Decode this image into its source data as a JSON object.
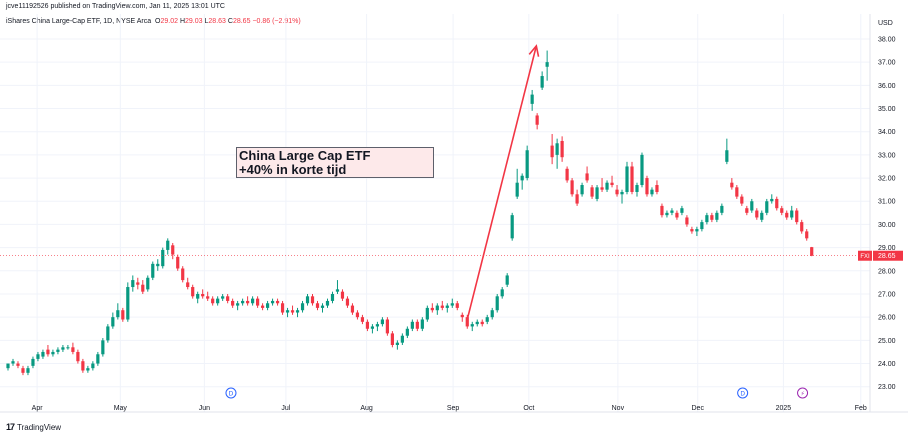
{
  "header": {
    "published": "jcve11192526 published on TradingView.com, Jan 11, 2025 13:01 UTC",
    "instrument": "iShares China Large-Cap ETF, 1D, NYSE Arca",
    "o_label": "O",
    "o_value": "29.02",
    "h_label": "H",
    "h_value": "29.03",
    "l_label": "L",
    "l_value": "28.63",
    "c_label": "C",
    "c_value": "28.65",
    "change": "−0.86 (−2.91%)"
  },
  "annotation": {
    "line1": "China Large Cap ETF",
    "line2": "+40% in korte tijd"
  },
  "footer": {
    "logo": "17",
    "brand": "TradingView"
  },
  "colors": {
    "up": "#089981",
    "down": "#f23645",
    "arrow": "#f23645",
    "grid": "#f0f3fa",
    "event_blue": "#2962ff",
    "event_purple": "#9c27b0"
  },
  "chart_data": {
    "type": "candlestick",
    "currency": "USD",
    "ylim": [
      22.6,
      38.3
    ],
    "y_ticks": [
      "23.00",
      "24.00",
      "25.00",
      "26.00",
      "27.00",
      "28.00",
      "29.00",
      "30.00",
      "31.00",
      "32.00",
      "33.00",
      "34.00",
      "35.00",
      "36.00",
      "37.00",
      "38.00"
    ],
    "x_ticks": [
      {
        "label": "Apr",
        "t": 0.035
      },
      {
        "label": "May",
        "t": 0.135
      },
      {
        "label": "Jun",
        "t": 0.236
      },
      {
        "label": "Jul",
        "t": 0.334
      },
      {
        "label": "Aug",
        "t": 0.431
      },
      {
        "label": "Sep",
        "t": 0.535
      },
      {
        "label": "Oct",
        "t": 0.626
      },
      {
        "label": "Nov",
        "t": 0.733
      },
      {
        "label": "Dec",
        "t": 0.829
      },
      {
        "label": "2025",
        "t": 0.932
      },
      {
        "label": "Feb",
        "t": 1.025
      }
    ],
    "x_domain": [
      0,
      1.1
    ],
    "last_price": {
      "ticker": "FXI",
      "value": "28.65"
    },
    "events": [
      {
        "label": "D",
        "t": 0.268,
        "kind": "dividend"
      },
      {
        "label": "D",
        "t": 0.883,
        "kind": "dividend"
      },
      {
        "label": "⚡",
        "t": 0.955,
        "kind": "split"
      }
    ],
    "arrow": {
      "from": {
        "t": 0.552,
        "price": 25.9
      },
      "to": {
        "t": 0.635,
        "price": 37.7
      }
    },
    "candles": [
      [
        0.0,
        23.8,
        24.0,
        23.7,
        24.0
      ],
      [
        0.006,
        24.0,
        24.2,
        23.9,
        24.1
      ],
      [
        0.012,
        24.0,
        24.1,
        23.8,
        23.9
      ],
      [
        0.018,
        23.8,
        23.9,
        23.5,
        23.6
      ],
      [
        0.024,
        23.6,
        23.9,
        23.5,
        23.8
      ],
      [
        0.03,
        23.9,
        24.3,
        23.8,
        24.2
      ],
      [
        0.036,
        24.2,
        24.5,
        24.1,
        24.4
      ],
      [
        0.042,
        24.3,
        24.6,
        24.2,
        24.5
      ],
      [
        0.048,
        24.6,
        24.8,
        24.3,
        24.4
      ],
      [
        0.054,
        24.4,
        24.6,
        24.3,
        24.5
      ],
      [
        0.06,
        24.5,
        24.7,
        24.4,
        24.6
      ],
      [
        0.066,
        24.6,
        24.8,
        24.5,
        24.7
      ],
      [
        0.072,
        24.7,
        24.8,
        24.6,
        24.7
      ],
      [
        0.078,
        24.7,
        24.9,
        24.4,
        24.5
      ],
      [
        0.084,
        24.5,
        24.6,
        24.0,
        24.1
      ],
      [
        0.09,
        24.1,
        24.2,
        23.6,
        23.7
      ],
      [
        0.096,
        23.7,
        23.9,
        23.6,
        23.8
      ],
      [
        0.102,
        23.8,
        24.1,
        23.7,
        24.0
      ],
      [
        0.108,
        24.0,
        24.5,
        23.9,
        24.4
      ],
      [
        0.114,
        24.4,
        25.1,
        24.3,
        25.0
      ],
      [
        0.12,
        25.0,
        25.7,
        24.9,
        25.6
      ],
      [
        0.126,
        25.6,
        26.2,
        25.5,
        26.0
      ],
      [
        0.132,
        26.0,
        26.6,
        25.9,
        26.3
      ],
      [
        0.138,
        26.3,
        26.4,
        25.8,
        25.9
      ],
      [
        0.144,
        25.9,
        27.5,
        25.8,
        27.3
      ],
      [
        0.15,
        27.3,
        27.8,
        27.1,
        27.6
      ],
      [
        0.156,
        27.5,
        27.7,
        27.2,
        27.4
      ],
      [
        0.162,
        27.4,
        27.6,
        27.0,
        27.1
      ],
      [
        0.168,
        27.2,
        27.8,
        27.1,
        27.7
      ],
      [
        0.174,
        27.7,
        28.4,
        27.6,
        28.3
      ],
      [
        0.18,
        28.2,
        28.5,
        28.0,
        28.3
      ],
      [
        0.186,
        28.2,
        29.0,
        28.1,
        28.9
      ],
      [
        0.192,
        28.9,
        29.4,
        28.7,
        29.3
      ],
      [
        0.198,
        29.1,
        29.2,
        28.5,
        28.7
      ],
      [
        0.204,
        28.6,
        28.7,
        28.0,
        28.1
      ],
      [
        0.21,
        28.1,
        28.2,
        27.5,
        27.6
      ],
      [
        0.216,
        27.5,
        27.7,
        27.2,
        27.3
      ],
      [
        0.222,
        27.3,
        27.4,
        26.8,
        26.9
      ],
      [
        0.228,
        26.8,
        27.1,
        26.6,
        27.0
      ],
      [
        0.234,
        27.0,
        27.2,
        26.8,
        26.9
      ],
      [
        0.24,
        26.9,
        27.1,
        26.7,
        26.8
      ],
      [
        0.246,
        26.8,
        26.9,
        26.5,
        26.6
      ],
      [
        0.252,
        26.6,
        26.9,
        26.5,
        26.8
      ],
      [
        0.258,
        26.8,
        27.0,
        26.7,
        26.9
      ],
      [
        0.264,
        26.9,
        27.0,
        26.6,
        26.7
      ],
      [
        0.27,
        26.7,
        26.8,
        26.4,
        26.5
      ],
      [
        0.276,
        26.5,
        26.7,
        26.3,
        26.6
      ],
      [
        0.282,
        26.6,
        26.8,
        26.5,
        26.7
      ],
      [
        0.288,
        26.7,
        26.9,
        26.5,
        26.6
      ],
      [
        0.294,
        26.6,
        26.9,
        26.5,
        26.8
      ],
      [
        0.3,
        26.8,
        26.9,
        26.4,
        26.5
      ],
      [
        0.306,
        26.5,
        26.6,
        26.3,
        26.4
      ],
      [
        0.312,
        26.4,
        26.7,
        26.3,
        26.6
      ],
      [
        0.318,
        26.6,
        26.8,
        26.5,
        26.7
      ],
      [
        0.324,
        26.7,
        26.8,
        26.5,
        26.6
      ],
      [
        0.33,
        26.6,
        26.7,
        26.1,
        26.2
      ],
      [
        0.336,
        26.2,
        26.4,
        26.0,
        26.3
      ],
      [
        0.342,
        26.3,
        26.5,
        26.1,
        26.2
      ],
      [
        0.348,
        26.2,
        26.4,
        26.0,
        26.3
      ],
      [
        0.354,
        26.3,
        26.7,
        26.2,
        26.6
      ],
      [
        0.36,
        26.6,
        27.0,
        26.5,
        26.9
      ],
      [
        0.366,
        26.9,
        27.0,
        26.5,
        26.6
      ],
      [
        0.372,
        26.6,
        26.7,
        26.3,
        26.4
      ],
      [
        0.378,
        26.4,
        26.6,
        26.2,
        26.5
      ],
      [
        0.384,
        26.5,
        26.8,
        26.4,
        26.7
      ],
      [
        0.39,
        26.7,
        27.1,
        26.6,
        27.0
      ],
      [
        0.396,
        27.1,
        27.6,
        27.0,
        27.2
      ],
      [
        0.402,
        27.1,
        27.2,
        26.7,
        26.8
      ],
      [
        0.408,
        26.8,
        26.9,
        26.4,
        26.5
      ],
      [
        0.414,
        26.5,
        26.6,
        26.1,
        26.2
      ],
      [
        0.42,
        26.2,
        26.3,
        25.9,
        26.0
      ],
      [
        0.426,
        26.0,
        26.1,
        25.7,
        25.8
      ],
      [
        0.432,
        25.8,
        25.9,
        25.4,
        25.5
      ],
      [
        0.438,
        25.5,
        25.7,
        25.3,
        25.6
      ],
      [
        0.444,
        25.6,
        25.8,
        25.4,
        25.7
      ],
      [
        0.45,
        25.7,
        26.0,
        25.6,
        25.9
      ],
      [
        0.456,
        25.9,
        26.0,
        25.2,
        25.3
      ],
      [
        0.462,
        25.3,
        25.4,
        24.7,
        24.8
      ],
      [
        0.468,
        24.8,
        25.0,
        24.6,
        24.9
      ],
      [
        0.474,
        24.9,
        25.3,
        24.8,
        25.2
      ],
      [
        0.48,
        25.2,
        25.6,
        25.1,
        25.5
      ],
      [
        0.486,
        25.5,
        25.9,
        25.4,
        25.8
      ],
      [
        0.492,
        25.8,
        25.9,
        25.4,
        25.5
      ],
      [
        0.498,
        25.5,
        26.0,
        25.4,
        25.9
      ],
      [
        0.504,
        25.9,
        26.5,
        25.8,
        26.4
      ],
      [
        0.51,
        26.4,
        26.6,
        26.2,
        26.3
      ],
      [
        0.516,
        26.3,
        26.6,
        26.1,
        26.5
      ],
      [
        0.522,
        26.5,
        26.7,
        26.3,
        26.4
      ],
      [
        0.528,
        26.4,
        26.6,
        26.2,
        26.5
      ],
      [
        0.534,
        26.5,
        26.8,
        26.4,
        26.6
      ],
      [
        0.54,
        26.6,
        26.7,
        26.3,
        26.4
      ],
      [
        0.546,
        26.1,
        26.2,
        25.8,
        26.0
      ],
      [
        0.552,
        26.0,
        26.1,
        25.5,
        25.6
      ],
      [
        0.558,
        25.6,
        25.8,
        25.4,
        25.7
      ],
      [
        0.564,
        25.7,
        25.9,
        25.6,
        25.8
      ],
      [
        0.57,
        25.8,
        25.9,
        25.6,
        25.7
      ],
      [
        0.576,
        25.8,
        26.1,
        25.7,
        26.0
      ],
      [
        0.582,
        26.0,
        26.4,
        25.9,
        26.3
      ],
      [
        0.588,
        26.3,
        27.0,
        26.2,
        26.9
      ],
      [
        0.594,
        26.9,
        27.3,
        26.8,
        27.2
      ],
      [
        0.6,
        27.4,
        27.9,
        27.3,
        27.8
      ],
      [
        0.606,
        29.4,
        30.5,
        29.3,
        30.4
      ],
      [
        0.612,
        31.2,
        32.4,
        31.1,
        31.8
      ],
      [
        0.618,
        31.9,
        32.2,
        31.5,
        32.1
      ],
      [
        0.624,
        32.0,
        33.4,
        31.9,
        33.2
      ],
      [
        0.63,
        35.2,
        35.8,
        34.9,
        35.6
      ],
      [
        0.636,
        34.7,
        34.8,
        34.1,
        34.3
      ],
      [
        0.642,
        35.9,
        36.6,
        35.8,
        36.4
      ],
      [
        0.648,
        36.8,
        37.5,
        36.2,
        37.0
      ],
      [
        0.654,
        33.4,
        33.9,
        32.6,
        32.9
      ],
      [
        0.66,
        33.0,
        33.7,
        32.4,
        33.5
      ],
      [
        0.666,
        33.6,
        33.8,
        32.7,
        32.9
      ],
      [
        0.672,
        32.4,
        32.5,
        31.8,
        31.9
      ],
      [
        0.678,
        31.9,
        32.0,
        31.2,
        31.3
      ],
      [
        0.684,
        31.3,
        31.5,
        30.8,
        30.9
      ],
      [
        0.69,
        31.3,
        31.8,
        31.2,
        31.7
      ],
      [
        0.696,
        32.2,
        32.5,
        31.8,
        31.9
      ],
      [
        0.702,
        31.6,
        31.7,
        31.1,
        31.2
      ],
      [
        0.708,
        31.1,
        31.7,
        31.0,
        31.6
      ],
      [
        0.714,
        31.6,
        32.0,
        31.4,
        31.5
      ],
      [
        0.72,
        31.5,
        31.9,
        31.4,
        31.8
      ],
      [
        0.726,
        31.8,
        32.1,
        31.6,
        31.7
      ],
      [
        0.732,
        31.5,
        31.7,
        31.2,
        31.3
      ],
      [
        0.738,
        31.3,
        31.5,
        30.9,
        31.4
      ],
      [
        0.744,
        31.4,
        32.7,
        31.3,
        32.5
      ],
      [
        0.75,
        32.5,
        32.7,
        31.3,
        31.4
      ],
      [
        0.756,
        31.4,
        31.8,
        31.2,
        31.7
      ],
      [
        0.762,
        31.7,
        33.1,
        31.6,
        33.0
      ],
      [
        0.768,
        32.0,
        32.1,
        31.2,
        31.3
      ],
      [
        0.774,
        31.3,
        31.6,
        31.2,
        31.5
      ],
      [
        0.78,
        31.7,
        31.9,
        31.3,
        31.4
      ],
      [
        0.786,
        30.8,
        30.9,
        30.3,
        30.4
      ],
      [
        0.792,
        30.4,
        30.6,
        30.3,
        30.5
      ],
      [
        0.798,
        30.5,
        30.7,
        30.4,
        30.6
      ],
      [
        0.804,
        30.5,
        30.6,
        30.2,
        30.3
      ],
      [
        0.81,
        30.5,
        30.8,
        30.4,
        30.7
      ],
      [
        0.816,
        30.3,
        30.4,
        29.9,
        30.0
      ],
      [
        0.822,
        29.8,
        29.9,
        29.6,
        29.7
      ],
      [
        0.828,
        29.7,
        29.9,
        29.5,
        29.8
      ],
      [
        0.834,
        29.8,
        30.2,
        29.7,
        30.1
      ],
      [
        0.84,
        30.1,
        30.5,
        30.0,
        30.4
      ],
      [
        0.846,
        30.4,
        30.5,
        30.1,
        30.2
      ],
      [
        0.852,
        30.2,
        30.6,
        30.1,
        30.5
      ],
      [
        0.858,
        30.5,
        30.9,
        30.4,
        30.8
      ],
      [
        0.864,
        32.7,
        33.7,
        32.6,
        33.2
      ],
      [
        0.87,
        31.8,
        32.0,
        31.5,
        31.6
      ],
      [
        0.876,
        31.6,
        31.7,
        31.1,
        31.2
      ],
      [
        0.882,
        31.2,
        31.3,
        30.8,
        30.9
      ],
      [
        0.888,
        30.7,
        30.8,
        30.4,
        30.5
      ],
      [
        0.894,
        30.6,
        31.1,
        30.5,
        31.0
      ],
      [
        0.9,
        30.6,
        30.7,
        30.2,
        30.3
      ],
      [
        0.906,
        30.2,
        30.6,
        30.1,
        30.5
      ],
      [
        0.912,
        30.5,
        31.1,
        30.4,
        31.0
      ],
      [
        0.918,
        31.0,
        31.3,
        30.9,
        31.1
      ],
      [
        0.924,
        31.1,
        31.2,
        30.6,
        30.7
      ],
      [
        0.93,
        30.7,
        30.8,
        30.4,
        30.5
      ],
      [
        0.936,
        30.5,
        30.6,
        30.2,
        30.3
      ],
      [
        0.942,
        30.3,
        30.8,
        30.2,
        30.6
      ],
      [
        0.948,
        30.6,
        30.7,
        30.0,
        30.1
      ],
      [
        0.954,
        30.1,
        30.2,
        29.6,
        29.7
      ],
      [
        0.96,
        29.7,
        29.8,
        29.3,
        29.4
      ],
      [
        0.966,
        29.02,
        29.03,
        28.63,
        28.65
      ]
    ]
  }
}
